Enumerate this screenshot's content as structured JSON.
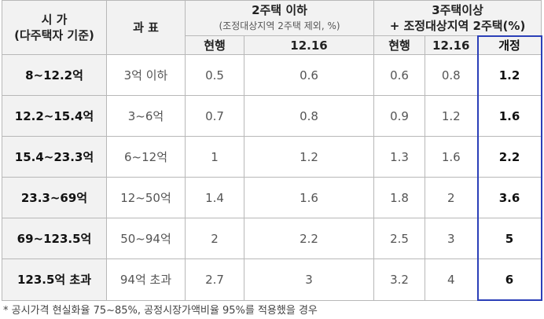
{
  "table": {
    "header": {
      "price": [
        "시 가",
        "(다주택자 기준)"
      ],
      "base": "과 표",
      "group1": {
        "title": "2주택 이하",
        "note": "(조정대상지역 2주택 제외, %)"
      },
      "group2": [
        "3주택이상",
        "+ 조정대상지역 2주택(%)"
      ],
      "sub": [
        "현행",
        "12.16",
        "현행",
        "12.16",
        "개정"
      ]
    },
    "rows": [
      [
        "8~12.2억",
        "3억 이하",
        "0.5",
        "0.6",
        "0.6",
        "0.8",
        "1.2"
      ],
      [
        "12.2~15.4억",
        "3~6억",
        "0.7",
        "0.8",
        "0.9",
        "1.2",
        "1.6"
      ],
      [
        "15.4~23.3억",
        "6~12억",
        "1",
        "1.2",
        "1.3",
        "1.6",
        "2.2"
      ],
      [
        "23.3~69억",
        "12~50억",
        "1.4",
        "1.6",
        "1.8",
        "2",
        "3.6"
      ],
      [
        "69~123.5억",
        "50~94억",
        "2",
        "2.2",
        "2.5",
        "3",
        "5"
      ],
      [
        "123.5억 초과",
        "94억 초과",
        "2.7",
        "3",
        "3.2",
        "4",
        "6"
      ]
    ]
  },
  "footnote": "* 공시가격 현실화율 75~85%, 공정시장가액비율 95%를 적용했을 경우"
}
